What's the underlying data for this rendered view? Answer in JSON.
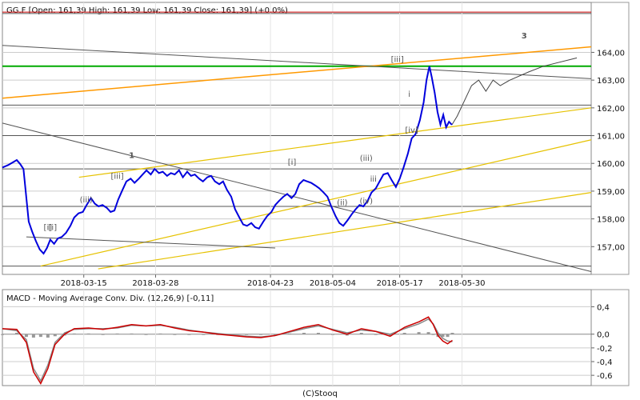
{
  "header": {
    "price_title": "GG.F [Open: 161,39  High: 161,39  Low: 161,39  Close: 161,39] (+0,0%)",
    "macd_title": "MACD - Moving Average Conv. Div. (12,26,9) [-0,11]",
    "footer": "(C)Stooq"
  },
  "chart_data": [
    {
      "type": "line",
      "name": "price",
      "ticker": "GG.F",
      "ohlc": {
        "open": 161.39,
        "high": 161.39,
        "low": 161.39,
        "close": 161.39,
        "change": "+0,0%"
      },
      "x_ticks": [
        "2018-03-15",
        "2018-03-28",
        "2018-04-23",
        "2018-05-04",
        "2018-05-17",
        "2018-05-30"
      ],
      "y_ticks": [
        "157,00",
        "158,00",
        "159,00",
        "160,00",
        "161,00",
        "162,00",
        "163,00",
        "164,00"
      ],
      "ylim": [
        156.0,
        165.8
      ],
      "xlim": [
        0,
        123
      ],
      "tick_positions": [
        17,
        32,
        56,
        69,
        83,
        96
      ],
      "grid": true,
      "price": [
        [
          0.0,
          159.85
        ],
        [
          1.2,
          159.94
        ],
        [
          2.2,
          160.04
        ],
        [
          3.0,
          160.12
        ],
        [
          3.7,
          159.98
        ],
        [
          4.4,
          159.8
        ],
        [
          5.5,
          157.9
        ],
        [
          6.2,
          157.55
        ],
        [
          7.0,
          157.2
        ],
        [
          7.8,
          156.9
        ],
        [
          8.6,
          156.75
        ],
        [
          9.3,
          156.95
        ],
        [
          10.0,
          157.25
        ],
        [
          10.8,
          157.1
        ],
        [
          11.6,
          157.3
        ],
        [
          12.4,
          157.35
        ],
        [
          13.3,
          157.5
        ],
        [
          14.2,
          157.75
        ],
        [
          15.0,
          158.05
        ],
        [
          15.9,
          158.2
        ],
        [
          16.8,
          158.25
        ],
        [
          17.6,
          158.5
        ],
        [
          18.5,
          158.75
        ],
        [
          19.3,
          158.55
        ],
        [
          20.1,
          158.45
        ],
        [
          20.9,
          158.5
        ],
        [
          21.8,
          158.4
        ],
        [
          22.6,
          158.25
        ],
        [
          23.4,
          158.3
        ],
        [
          24.2,
          158.7
        ],
        [
          25.1,
          159.05
        ],
        [
          25.9,
          159.35
        ],
        [
          26.8,
          159.45
        ],
        [
          27.6,
          159.3
        ],
        [
          28.5,
          159.45
        ],
        [
          29.3,
          159.6
        ],
        [
          30.1,
          159.75
        ],
        [
          31.0,
          159.6
        ],
        [
          31.8,
          159.8
        ],
        [
          32.7,
          159.65
        ],
        [
          33.5,
          159.7
        ],
        [
          34.4,
          159.55
        ],
        [
          35.2,
          159.65
        ],
        [
          36.0,
          159.6
        ],
        [
          36.9,
          159.75
        ],
        [
          37.7,
          159.5
        ],
        [
          38.6,
          159.7
        ],
        [
          39.4,
          159.55
        ],
        [
          40.2,
          159.6
        ],
        [
          41.1,
          159.45
        ],
        [
          41.9,
          159.35
        ],
        [
          42.8,
          159.5
        ],
        [
          43.6,
          159.55
        ],
        [
          44.4,
          159.35
        ],
        [
          45.3,
          159.25
        ],
        [
          46.1,
          159.35
        ],
        [
          46.9,
          159.05
        ],
        [
          47.8,
          158.8
        ],
        [
          48.6,
          158.35
        ],
        [
          49.5,
          158.05
        ],
        [
          50.3,
          157.8
        ],
        [
          51.1,
          157.75
        ],
        [
          52.0,
          157.85
        ],
        [
          52.8,
          157.7
        ],
        [
          53.6,
          157.65
        ],
        [
          54.5,
          157.9
        ],
        [
          55.3,
          158.1
        ],
        [
          56.2,
          158.25
        ],
        [
          57.0,
          158.5
        ],
        [
          57.8,
          158.65
        ],
        [
          58.7,
          158.8
        ],
        [
          59.5,
          158.9
        ],
        [
          60.4,
          158.75
        ],
        [
          61.2,
          158.9
        ],
        [
          62.0,
          159.25
        ],
        [
          62.9,
          159.4
        ],
        [
          63.7,
          159.35
        ],
        [
          64.5,
          159.3
        ],
        [
          65.4,
          159.2
        ],
        [
          66.2,
          159.1
        ],
        [
          67.1,
          158.95
        ],
        [
          67.9,
          158.8
        ],
        [
          68.7,
          158.45
        ],
        [
          69.6,
          158.1
        ],
        [
          70.4,
          157.85
        ],
        [
          71.2,
          157.75
        ],
        [
          72.1,
          157.95
        ],
        [
          72.9,
          158.15
        ],
        [
          73.8,
          158.35
        ],
        [
          74.6,
          158.5
        ],
        [
          75.4,
          158.45
        ],
        [
          76.3,
          158.65
        ],
        [
          77.1,
          158.95
        ],
        [
          78.0,
          159.1
        ],
        [
          78.8,
          159.35
        ],
        [
          79.6,
          159.6
        ],
        [
          80.5,
          159.65
        ],
        [
          81.3,
          159.4
        ],
        [
          82.2,
          159.15
        ],
        [
          83.0,
          159.45
        ],
        [
          83.8,
          159.85
        ],
        [
          84.7,
          160.35
        ],
        [
          85.5,
          160.9
        ],
        [
          86.3,
          161.05
        ],
        [
          87.2,
          161.55
        ],
        [
          88.0,
          162.2
        ],
        [
          88.6,
          163.0
        ],
        [
          89.2,
          163.5
        ],
        [
          89.7,
          163.1
        ],
        [
          90.3,
          162.55
        ],
        [
          90.9,
          161.85
        ],
        [
          91.5,
          161.4
        ],
        [
          92.1,
          161.75
        ],
        [
          92.7,
          161.3
        ],
        [
          93.3,
          161.5
        ],
        [
          93.9,
          161.39
        ]
      ],
      "wave_labels": [
        "[i]",
        "[i]",
        "(iii)",
        "[iii]",
        "[iii]",
        "[i]",
        "(ii)",
        "(iv)",
        "iii",
        "(iii)",
        "[iv]",
        "i",
        "i",
        "1",
        "3"
      ]
    },
    {
      "type": "line",
      "name": "macd",
      "title": "MACD - Moving Average Conv. Div. (12,26,9) [-0,11]",
      "y_ticks": [
        "0,4",
        "0,0",
        "-0,2",
        "-0,4",
        "-0,6"
      ],
      "ylim": [
        -0.75,
        0.65
      ],
      "series": [
        {
          "values": [
            [
              0,
              0.08
            ],
            [
              3,
              0.07
            ],
            [
              5,
              -0.12
            ],
            [
              6.5,
              -0.55
            ],
            [
              8,
              -0.72
            ],
            [
              9.5,
              -0.5
            ],
            [
              11,
              -0.15
            ],
            [
              13,
              0.0
            ],
            [
              15,
              0.08
            ],
            [
              18,
              0.09
            ],
            [
              21,
              0.07
            ],
            [
              24,
              0.1
            ],
            [
              27,
              0.14
            ],
            [
              30,
              0.12
            ],
            [
              33,
              0.14
            ],
            [
              36,
              0.09
            ],
            [
              39,
              0.05
            ],
            [
              42,
              0.03
            ],
            [
              45,
              0.0
            ],
            [
              48,
              -0.02
            ],
            [
              51,
              -0.04
            ],
            [
              54,
              -0.05
            ],
            [
              57,
              -0.02
            ],
            [
              60,
              0.04
            ],
            [
              63,
              0.1
            ],
            [
              66,
              0.14
            ],
            [
              69,
              0.06
            ],
            [
              72,
              0.0
            ],
            [
              75,
              0.08
            ],
            [
              78,
              0.04
            ],
            [
              81,
              -0.03
            ],
            [
              84,
              0.1
            ],
            [
              87,
              0.18
            ],
            [
              89,
              0.25
            ],
            [
              90,
              0.14
            ],
            [
              91,
              -0.02
            ],
            [
              92,
              -0.1
            ],
            [
              93,
              -0.14
            ],
            [
              94,
              -0.09
            ]
          ]
        },
        {
          "values": [
            [
              0,
              0.08
            ],
            [
              3,
              0.05
            ],
            [
              5,
              -0.08
            ],
            [
              6.5,
              -0.5
            ],
            [
              8,
              -0.68
            ],
            [
              9.5,
              -0.45
            ],
            [
              11,
              -0.12
            ],
            [
              13,
              0.02
            ],
            [
              15,
              0.07
            ],
            [
              18,
              0.08
            ],
            [
              21,
              0.08
            ],
            [
              24,
              0.09
            ],
            [
              27,
              0.13
            ],
            [
              30,
              0.12
            ],
            [
              33,
              0.13
            ],
            [
              36,
              0.1
            ],
            [
              39,
              0.06
            ],
            [
              42,
              0.03
            ],
            [
              45,
              0.01
            ],
            [
              48,
              -0.01
            ],
            [
              51,
              -0.03
            ],
            [
              54,
              -0.04
            ],
            [
              57,
              -0.02
            ],
            [
              60,
              0.03
            ],
            [
              63,
              0.08
            ],
            [
              66,
              0.12
            ],
            [
              69,
              0.07
            ],
            [
              72,
              0.02
            ],
            [
              75,
              0.06
            ],
            [
              78,
              0.04
            ],
            [
              81,
              0.0
            ],
            [
              84,
              0.08
            ],
            [
              87,
              0.15
            ],
            [
              89,
              0.22
            ],
            [
              90,
              0.15
            ],
            [
              91,
              0.02
            ],
            [
              92,
              -0.06
            ],
            [
              93,
              -0.1
            ],
            [
              94,
              -0.11
            ]
          ]
        }
      ],
      "histogram": [
        0.0,
        0.02,
        -0.04,
        -0.05,
        -0.04,
        -0.05,
        -0.03,
        -0.02,
        0.01,
        0.01,
        -0.01,
        0.01,
        0.01,
        0.0,
        0.01,
        -0.01,
        -0.01,
        0.0,
        -0.01,
        -0.01,
        -0.01,
        -0.01,
        0.0,
        0.01,
        0.02,
        0.02,
        -0.01,
        -0.02,
        0.02,
        0.0,
        -0.03,
        0.02,
        0.03,
        0.03,
        -0.01,
        -0.04,
        -0.04,
        -0.04,
        0.02
      ]
    }
  ],
  "colors": {
    "price_line": "#0000dd",
    "macd_line": "#cc0000",
    "signal_line": "#888888",
    "resistance_red": "#cc0000",
    "support_green": "#00aa00",
    "channel_orange": "#ff9900",
    "channel_gold": "#e6c200",
    "trend_gray": "#555555",
    "grid": "#cccccc"
  }
}
